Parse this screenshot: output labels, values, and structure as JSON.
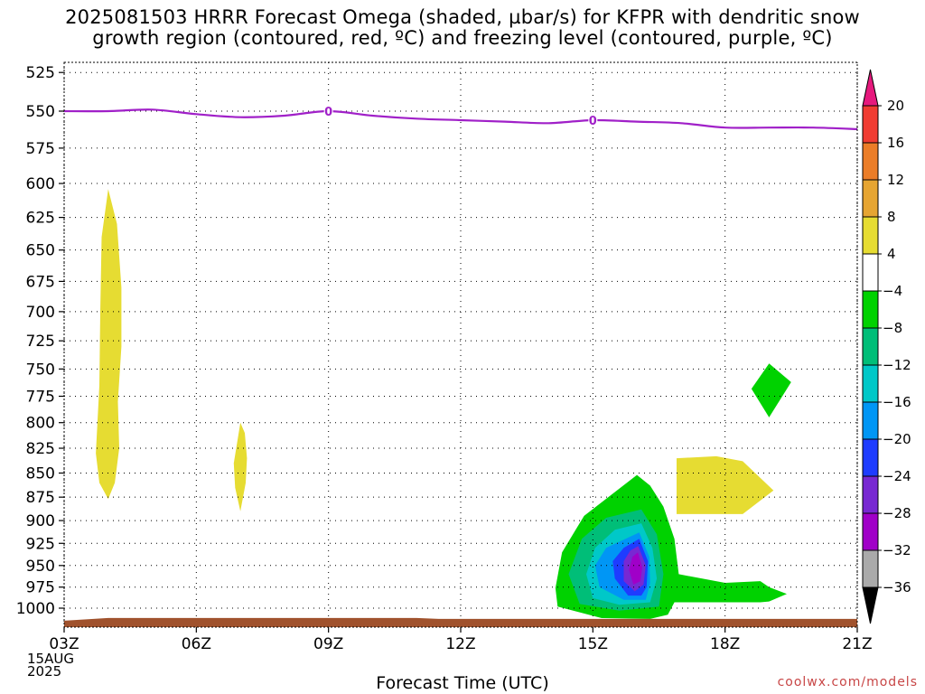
{
  "title_lines": [
    "2025081503 HRRR Forecast Omega (shaded, µbar/s) for KFPR with dendritic snow",
    "growth region (contoured, red, ºC) and freezing level (contoured, purple, ºC)"
  ],
  "footer_date": [
    "15AUG",
    "2025"
  ],
  "credit": "coolwx.com/models",
  "chart_data": {
    "type": "contour",
    "title": "2025081503 HRRR Forecast Omega (shaded, µbar/s) for KFPR with dendritic snow growth region (contoured, red, ºC) and freezing level (contoured, purple, ºC)",
    "xlabel": "Forecast Time (UTC)",
    "ylabel": "",
    "x_ticks": [
      {
        "hour": 3,
        "label": "03Z"
      },
      {
        "hour": 6,
        "label": "06Z"
      },
      {
        "hour": 9,
        "label": "09Z"
      },
      {
        "hour": 12,
        "label": "12Z"
      },
      {
        "hour": 15,
        "label": "15Z"
      },
      {
        "hour": 18,
        "label": "18Z"
      },
      {
        "hour": 21,
        "label": "21Z"
      }
    ],
    "xlim_hours": [
      3,
      21
    ],
    "y_axis": {
      "scale": "log-pressure",
      "ylim_hPa": [
        1018,
        512
      ],
      "inverted": true
    },
    "y_ticks": [
      525,
      550,
      575,
      600,
      625,
      650,
      675,
      700,
      725,
      750,
      775,
      800,
      825,
      850,
      875,
      900,
      925,
      950,
      975,
      1000
    ],
    "grid": "dotted",
    "colorbar": {
      "labels": [
        "20",
        "16",
        "12",
        "8",
        "4",
        "-4",
        "-8",
        "-12",
        "-16",
        "-20",
        "-24",
        "-28",
        "-32",
        "-36"
      ],
      "colors": [
        "#e6197d",
        "#f03c32",
        "#eb7d28",
        "#e6a532",
        "#e6dc32",
        "#ffffff",
        "#00d200",
        "#00be78",
        "#00c8c8",
        "#0096f5",
        "#1e3cff",
        "#7828d2",
        "#a000c8",
        "#aaaaaa",
        "#000000"
      ]
    },
    "freezing_level": {
      "color": "#a020c8",
      "contour_label": "0",
      "points": [
        [
          3,
          550
        ],
        [
          4,
          550
        ],
        [
          5,
          549
        ],
        [
          6,
          552
        ],
        [
          7,
          554
        ],
        [
          8,
          553
        ],
        [
          9,
          550
        ],
        [
          10,
          553
        ],
        [
          11,
          555
        ],
        [
          12,
          556
        ],
        [
          13,
          557
        ],
        [
          14,
          558
        ],
        [
          15,
          556
        ],
        [
          16,
          557
        ],
        [
          17,
          558
        ],
        [
          18,
          561
        ],
        [
          19,
          561
        ],
        [
          20,
          561
        ],
        [
          21,
          562
        ]
      ],
      "label_hours": [
        9,
        15
      ]
    },
    "terrain": {
      "color": "#a0522d",
      "surface_hPa": 1013
    },
    "omega_regions": [
      {
        "value_range": [
          4,
          8
        ],
        "color": "#e6dc32",
        "points": [
          [
            4.0,
            604
          ],
          [
            3.85,
            640
          ],
          [
            3.82,
            700
          ],
          [
            3.8,
            765
          ],
          [
            3.72,
            830
          ],
          [
            3.8,
            860
          ],
          [
            4.0,
            877
          ],
          [
            4.15,
            860
          ],
          [
            4.25,
            825
          ],
          [
            4.22,
            780
          ],
          [
            4.3,
            730
          ],
          [
            4.3,
            680
          ],
          [
            4.2,
            630
          ]
        ]
      },
      {
        "value_range": [
          4,
          8
        ],
        "color": "#e6dc32",
        "points": [
          [
            7.0,
            800
          ],
          [
            6.85,
            840
          ],
          [
            6.88,
            865
          ],
          [
            7.0,
            890
          ],
          [
            7.12,
            860
          ],
          [
            7.15,
            835
          ],
          [
            7.1,
            810
          ]
        ]
      },
      {
        "value_range": [
          4,
          8
        ],
        "color": "#e6dc32",
        "points": [
          [
            16.9,
            835
          ],
          [
            17.8,
            833
          ],
          [
            18.4,
            838
          ],
          [
            19.1,
            868
          ],
          [
            18.4,
            893
          ],
          [
            17.8,
            893
          ],
          [
            16.9,
            893
          ]
        ]
      },
      {
        "value_range": [
          -8,
          -4
        ],
        "color": "#00d200",
        "points": [
          [
            19.0,
            745
          ],
          [
            19.5,
            762
          ],
          [
            19.0,
            795
          ],
          [
            18.6,
            768
          ]
        ]
      },
      {
        "value_range": [
          -8,
          -4
        ],
        "color": "#00d200",
        "points": [
          [
            16.0,
            852
          ],
          [
            16.3,
            863
          ],
          [
            16.6,
            885
          ],
          [
            16.85,
            920
          ],
          [
            16.95,
            960
          ],
          [
            18.0,
            970
          ],
          [
            18.8,
            968
          ],
          [
            19.0,
            975
          ],
          [
            19.4,
            983
          ],
          [
            19.0,
            992
          ],
          [
            18.8,
            993
          ],
          [
            16.85,
            993
          ],
          [
            16.7,
            1008
          ],
          [
            16.3,
            1013
          ],
          [
            15.2,
            1012
          ],
          [
            14.2,
            998
          ],
          [
            14.15,
            976
          ],
          [
            14.3,
            935
          ],
          [
            14.8,
            895
          ]
        ]
      },
      {
        "value_range": [
          -12,
          -8
        ],
        "color": "#00be78",
        "points": [
          [
            16.1,
            888
          ],
          [
            16.45,
            915
          ],
          [
            16.6,
            960
          ],
          [
            16.5,
            998
          ],
          [
            15.6,
            1003
          ],
          [
            14.7,
            995
          ],
          [
            14.45,
            960
          ],
          [
            14.75,
            920
          ],
          [
            15.3,
            897
          ]
        ]
      },
      {
        "value_range": [
          -16,
          -12
        ],
        "color": "#00c8c8",
        "points": [
          [
            16.1,
            903
          ],
          [
            16.35,
            930
          ],
          [
            16.45,
            965
          ],
          [
            16.3,
            993
          ],
          [
            15.6,
            996
          ],
          [
            15.0,
            988
          ],
          [
            14.85,
            960
          ],
          [
            15.05,
            930
          ],
          [
            15.5,
            910
          ]
        ]
      },
      {
        "value_range": [
          -20,
          -16
        ],
        "color": "#0096f5",
        "points": [
          [
            16.05,
            913
          ],
          [
            16.28,
            940
          ],
          [
            16.3,
            970
          ],
          [
            16.2,
            990
          ],
          [
            15.7,
            990
          ],
          [
            15.15,
            975
          ],
          [
            15.05,
            950
          ],
          [
            15.3,
            930
          ]
        ]
      },
      {
        "value_range": [
          -24,
          -20
        ],
        "color": "#1e3cff",
        "points": [
          [
            16.05,
            920
          ],
          [
            16.25,
            945
          ],
          [
            16.22,
            975
          ],
          [
            16.1,
            985
          ],
          [
            15.8,
            985
          ],
          [
            15.5,
            965
          ],
          [
            15.45,
            945
          ],
          [
            15.7,
            930
          ]
        ]
      },
      {
        "value_range": [
          -28,
          -24
        ],
        "color": "#7828d2",
        "points": [
          [
            16.03,
            928
          ],
          [
            16.2,
            950
          ],
          [
            16.15,
            972
          ],
          [
            15.95,
            980
          ],
          [
            15.7,
            968
          ],
          [
            15.7,
            945
          ],
          [
            15.85,
            933
          ]
        ]
      },
      {
        "value_range": [
          -32,
          -28
        ],
        "color": "#a000c8",
        "points": [
          [
            16.02,
            935
          ],
          [
            16.12,
            952
          ],
          [
            16.08,
            968
          ],
          [
            15.92,
            972
          ],
          [
            15.82,
            955
          ],
          [
            15.9,
            940
          ]
        ]
      }
    ]
  }
}
